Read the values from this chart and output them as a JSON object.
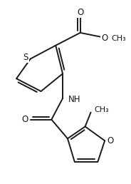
{
  "bg_color": "#ffffff",
  "line_color": "#1a1a1a",
  "line_width": 1.4,
  "font_size": 8.5,
  "figsize": [
    1.84,
    2.58
  ],
  "dpi": 100,
  "xlim": [
    0,
    184
  ],
  "ylim": [
    0,
    258
  ]
}
